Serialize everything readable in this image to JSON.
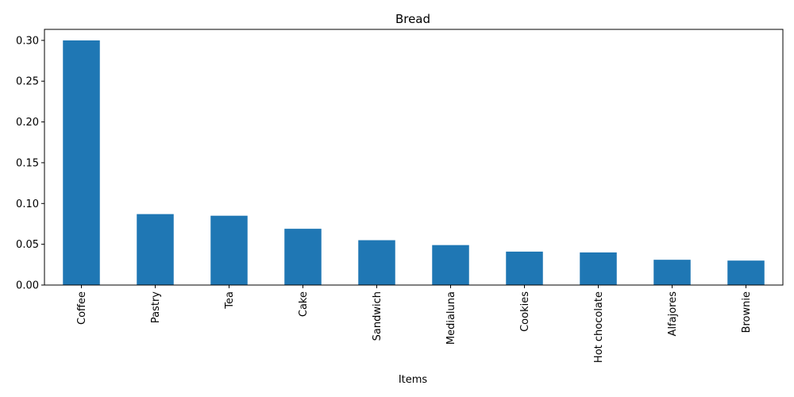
{
  "chart_data": {
    "type": "bar",
    "title": "Bread",
    "xlabel": "Items",
    "ylabel": "",
    "categories": [
      "Coffee",
      "Pastry",
      "Tea",
      "Cake",
      "Sandwich",
      "Medialuna",
      "Cookies",
      "Hot chocolate",
      "Alfajores",
      "Brownie"
    ],
    "values": [
      0.3,
      0.087,
      0.085,
      0.069,
      0.055,
      0.049,
      0.041,
      0.04,
      0.031,
      0.03
    ],
    "ylim": [
      0,
      0.3135
    ],
    "yticks": [
      "0.00",
      "0.05",
      "0.10",
      "0.15",
      "0.20",
      "0.25",
      "0.30"
    ],
    "bar_color": "#1f77b4",
    "grid": false,
    "legend": "none"
  }
}
